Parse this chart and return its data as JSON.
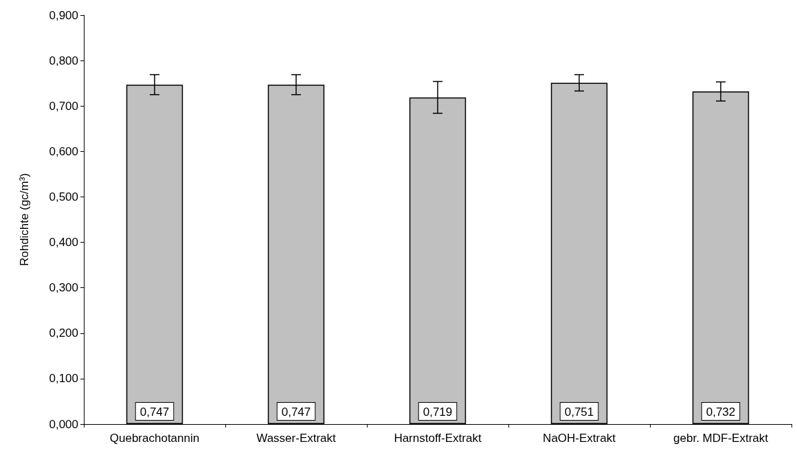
{
  "chart_data": {
    "type": "bar",
    "ylabel": "Rohdichte (gc/m³)",
    "categories": [
      "Quebrachotannin",
      "Wasser-Extrakt",
      "Harnstoff-Extrakt",
      "NaOH-Extrakt",
      "gebr. MDF-Extrakt"
    ],
    "values": [
      0.747,
      0.747,
      0.719,
      0.751,
      0.732
    ],
    "errors": [
      0.022,
      0.022,
      0.035,
      0.018,
      0.021
    ],
    "value_labels": [
      "0,747",
      "0,747",
      "0,719",
      "0,751",
      "0,732"
    ],
    "color": "#c0c0c0",
    "ylim": [
      0,
      0.9
    ],
    "yticks": [
      {
        "value": 0,
        "label": "0,000"
      },
      {
        "value": 0.1,
        "label": "0,100"
      },
      {
        "value": 0.2,
        "label": "0,200"
      },
      {
        "value": 0.3,
        "label": "0,300"
      },
      {
        "value": 0.4,
        "label": "0,400"
      },
      {
        "value": 0.5,
        "label": "0,500"
      },
      {
        "value": 0.6,
        "label": "0,600"
      },
      {
        "value": 0.7,
        "label": "0,700"
      },
      {
        "value": 0.8,
        "label": "0,800"
      },
      {
        "value": 0.9,
        "label": "0,900"
      }
    ],
    "grid": false
  }
}
